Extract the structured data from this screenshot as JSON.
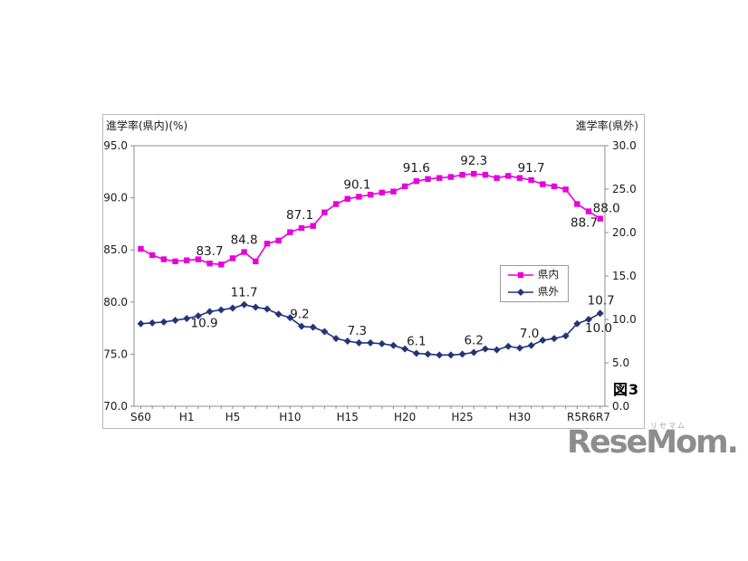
{
  "figure_label": "図3",
  "watermark": {
    "text": "ReseMom.",
    "furigana": "リセマム"
  },
  "chart_data": {
    "type": "line",
    "title": "",
    "years": {
      "start": 1985,
      "end": 2025
    },
    "x_ticks": [
      {
        "year": 1985,
        "label": "S60"
      },
      {
        "year": 1989,
        "label": "H1"
      },
      {
        "year": 1993,
        "label": "H5"
      },
      {
        "year": 1998,
        "label": "H10"
      },
      {
        "year": 2003,
        "label": "H15"
      },
      {
        "year": 2008,
        "label": "H20"
      },
      {
        "year": 2013,
        "label": "H25"
      },
      {
        "year": 2018,
        "label": "H30"
      },
      {
        "year": 2024,
        "label": "R5R6R7"
      }
    ],
    "left_axis": {
      "title": "進学率(県内)(%)",
      "min": 70,
      "max": 95,
      "tick_step": 5,
      "tick_labels": [
        "95.0",
        "90.0",
        "85.0",
        "80.0",
        "75.0",
        "70.0"
      ]
    },
    "right_axis": {
      "title": "進学率(県外)",
      "min": 0,
      "max": 30,
      "tick_step": 5,
      "tick_labels": [
        "30.0",
        "25.0",
        "20.0",
        "15.0",
        "10.0",
        "5.0",
        "0.0"
      ]
    },
    "legend_position": "center-right",
    "grid": false,
    "series": [
      {
        "name": "県内",
        "axis": "left",
        "color": "#e600db",
        "marker": "square",
        "values": [
          85.1,
          84.5,
          84.1,
          83.9,
          84.0,
          84.1,
          83.7,
          83.6,
          84.2,
          84.8,
          83.9,
          85.6,
          85.9,
          86.7,
          87.1,
          87.3,
          88.6,
          89.4,
          89.9,
          90.1,
          90.3,
          90.5,
          90.6,
          91.1,
          91.6,
          91.8,
          91.9,
          92.0,
          92.2,
          92.3,
          92.2,
          91.9,
          92.1,
          91.9,
          91.7,
          91.3,
          91.1,
          90.8,
          89.4,
          88.7,
          88.0
        ],
        "labels": [
          {
            "year": 1991,
            "text": "83.7",
            "dx": 0,
            "dy": -9
          },
          {
            "year": 1994,
            "text": "84.8",
            "dx": 0,
            "dy": -9
          },
          {
            "year": 1999,
            "text": "87.1",
            "dx": -2,
            "dy": -10
          },
          {
            "year": 2004,
            "text": "90.1",
            "dx": -2,
            "dy": -9
          },
          {
            "year": 2009,
            "text": "91.6",
            "dx": 0,
            "dy": -10
          },
          {
            "year": 2014,
            "text": "92.3",
            "dx": 0,
            "dy": -10
          },
          {
            "year": 2019,
            "text": "91.7",
            "dx": 0,
            "dy": -9
          },
          {
            "year": 2024,
            "text": "88.7",
            "dx": -5,
            "dy": 17
          },
          {
            "year": 2025,
            "text": "88.0",
            "dx": 7,
            "dy": -7
          }
        ]
      },
      {
        "name": "県外",
        "axis": "right",
        "color": "#22357a",
        "marker": "diamond",
        "values": [
          9.5,
          9.6,
          9.7,
          9.9,
          10.1,
          10.4,
          10.9,
          11.1,
          11.3,
          11.7,
          11.4,
          11.2,
          10.6,
          10.2,
          9.2,
          9.1,
          8.6,
          7.8,
          7.5,
          7.3,
          7.3,
          7.2,
          7.0,
          6.6,
          6.1,
          6.0,
          5.9,
          5.9,
          6.0,
          6.2,
          6.6,
          6.5,
          6.9,
          6.7,
          7.0,
          7.6,
          7.8,
          8.1,
          9.5,
          10.0,
          10.7
        ],
        "labels": [
          {
            "year": 1991,
            "text": "10.9",
            "dx": -6,
            "dy": 17
          },
          {
            "year": 1994,
            "text": "11.7",
            "dx": 0,
            "dy": -9
          },
          {
            "year": 1999,
            "text": "9.2",
            "dx": -2,
            "dy": -9
          },
          {
            "year": 2004,
            "text": "7.3",
            "dx": -2,
            "dy": -9
          },
          {
            "year": 2009,
            "text": "6.1",
            "dx": 0,
            "dy": -9
          },
          {
            "year": 2014,
            "text": "6.2",
            "dx": 0,
            "dy": -9
          },
          {
            "year": 2019,
            "text": "7.0",
            "dx": -2,
            "dy": -9
          },
          {
            "year": 2024,
            "text": "10.0",
            "dx": 11,
            "dy": 14
          },
          {
            "year": 2025,
            "text": "10.7",
            "dx": 1,
            "dy": -10
          }
        ]
      }
    ]
  }
}
